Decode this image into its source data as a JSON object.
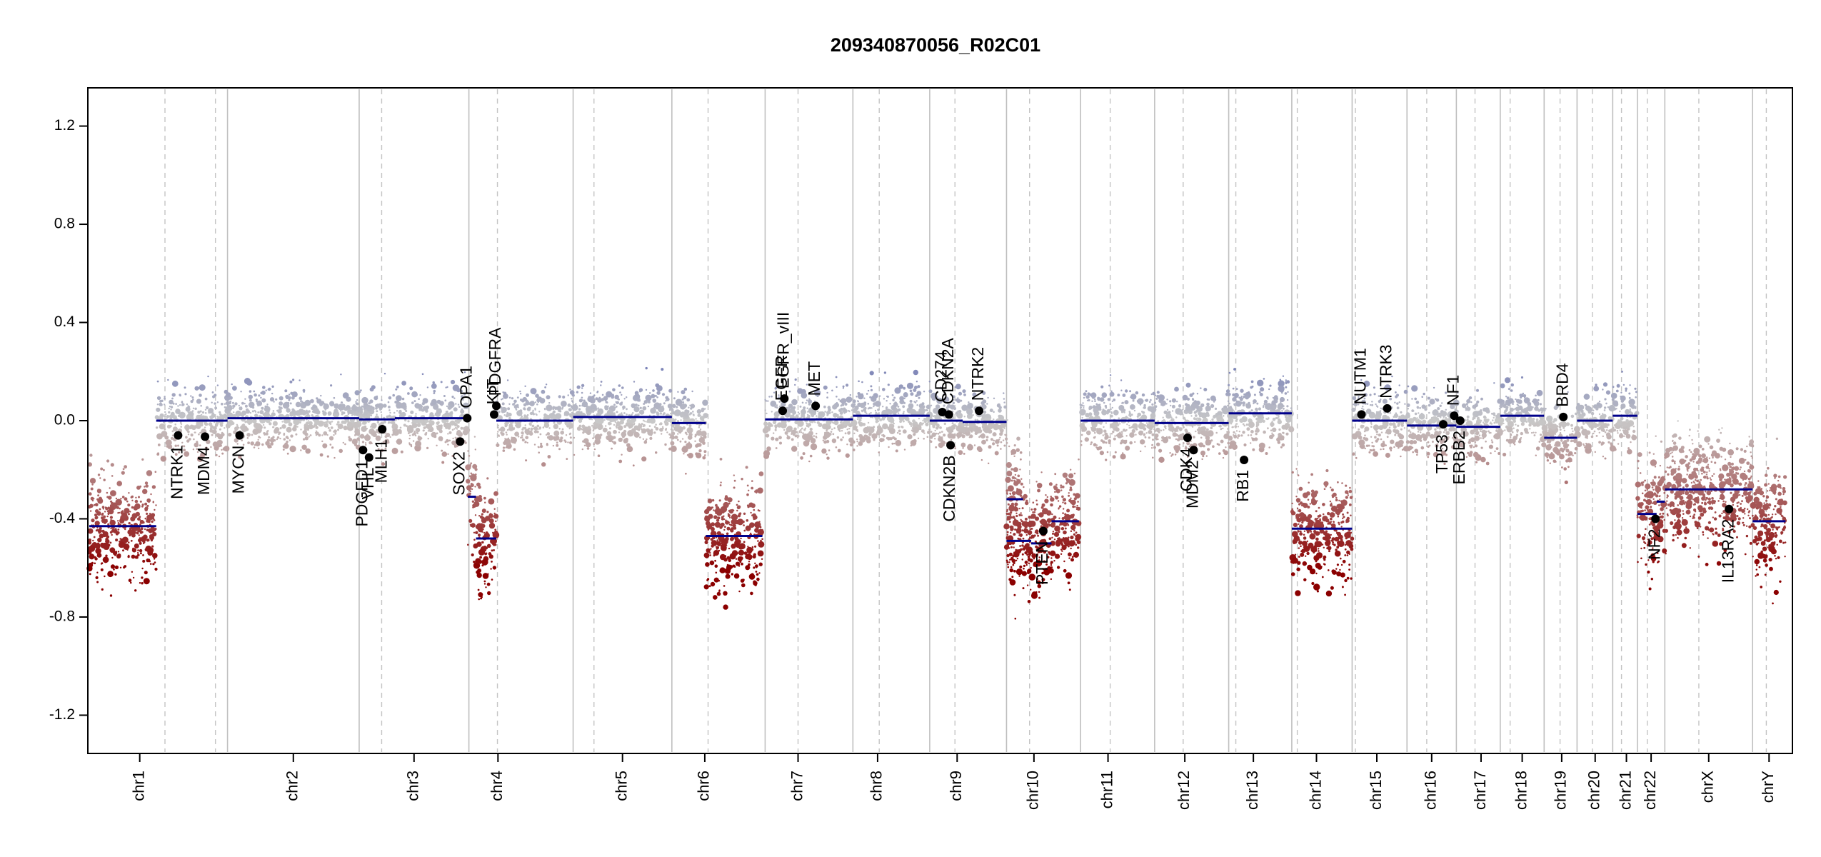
{
  "chart_data": {
    "type": "scatter",
    "title": "209340870056_R02C01",
    "xlabel": "",
    "ylabel": "",
    "ylim": [
      -1.35,
      1.35
    ],
    "yticks": [
      1.2,
      0.8,
      0.4,
      0.0,
      -0.4,
      -0.8,
      -1.2
    ],
    "grid": false,
    "legend": "none",
    "colors": {
      "gain": "#6f78b5",
      "neutral": "#c8c8c8",
      "loss": "#8b0000",
      "segment": "#00008b",
      "point": "#000000"
    },
    "chromosomes": [
      {
        "name": "chr1",
        "start": 0,
        "end": 240,
        "center": 80
      },
      {
        "name": "chr2",
        "start": 240,
        "end": 480,
        "center": 360
      },
      {
        "name": "chr3",
        "start": 480,
        "end": 680,
        "center": 580
      },
      {
        "name": "chr4",
        "start": 680,
        "end": 870,
        "center": 733
      },
      {
        "name": "chr5",
        "start": 870,
        "end": 1050,
        "center": 960
      },
      {
        "name": "chr6",
        "start": 1050,
        "end": 1220,
        "center": 1110
      },
      {
        "name": "chr7",
        "start": 1220,
        "end": 1380,
        "center": 1280
      },
      {
        "name": "chr8",
        "start": 1380,
        "end": 1520,
        "center": 1425
      },
      {
        "name": "chr9",
        "start": 1520,
        "end": 1660,
        "center": 1570
      },
      {
        "name": "chr10",
        "start": 1660,
        "end": 1795,
        "center": 1710
      },
      {
        "name": "chr11",
        "start": 1795,
        "end": 1930,
        "center": 1845
      },
      {
        "name": "chr12",
        "start": 1930,
        "end": 2065,
        "center": 1985
      },
      {
        "name": "chr13",
        "start": 2065,
        "end": 2180,
        "center": 2110
      },
      {
        "name": "chr14",
        "start": 2180,
        "end": 2290,
        "center": 2225
      },
      {
        "name": "chr15",
        "start": 2290,
        "end": 2390,
        "center": 2335
      },
      {
        "name": "chr16",
        "start": 2390,
        "end": 2480,
        "center": 2435
      },
      {
        "name": "chr17",
        "start": 2480,
        "end": 2560,
        "center": 2525
      },
      {
        "name": "chr18",
        "start": 2560,
        "end": 2640,
        "center": 2600
      },
      {
        "name": "chr19",
        "start": 2640,
        "end": 2700,
        "center": 2672
      },
      {
        "name": "chr20",
        "start": 2700,
        "end": 2765,
        "center": 2733
      },
      {
        "name": "chr21",
        "start": 2765,
        "end": 2810,
        "center": 2790
      },
      {
        "name": "chr22",
        "start": 2810,
        "end": 2860,
        "center": 2835
      },
      {
        "name": "chrX",
        "start": 2860,
        "end": 3020,
        "center": 2940
      },
      {
        "name": "chrY",
        "start": 3020,
        "end": 3080,
        "center": 3050
      }
    ],
    "centromeres": [
      126,
      218,
      521,
      732,
      908,
      1116,
      1280,
      1428,
      1566,
      1702,
      1849,
      1982,
      2078,
      2190,
      2296,
      2426,
      2514,
      2578,
      2669,
      2728,
      2781,
      2828,
      2922,
      3045
    ],
    "segments": [
      {
        "start": -12,
        "end": 110,
        "value": -0.43
      },
      {
        "start": 110,
        "end": 240,
        "value": 0.0
      },
      {
        "start": 240,
        "end": 480,
        "value": 0.01
      },
      {
        "start": 480,
        "end": 545,
        "value": 0.005
      },
      {
        "start": 545,
        "end": 678,
        "value": 0.01
      },
      {
        "start": 678,
        "end": 693,
        "value": -0.31
      },
      {
        "start": 693,
        "end": 730,
        "value": -0.48
      },
      {
        "start": 730,
        "end": 870,
        "value": 0.0
      },
      {
        "start": 870,
        "end": 1050,
        "value": 0.015
      },
      {
        "start": 1050,
        "end": 1112,
        "value": -0.01
      },
      {
        "start": 1112,
        "end": 1215,
        "value": -0.47
      },
      {
        "start": 1220,
        "end": 1380,
        "value": 0.005
      },
      {
        "start": 1380,
        "end": 1520,
        "value": 0.02
      },
      {
        "start": 1520,
        "end": 1580,
        "value": 0.0
      },
      {
        "start": 1580,
        "end": 1660,
        "value": -0.005
      },
      {
        "start": 1660,
        "end": 1690,
        "value": -0.32
      },
      {
        "start": 1660,
        "end": 1705,
        "value": -0.49
      },
      {
        "start": 1705,
        "end": 1742,
        "value": -0.5
      },
      {
        "start": 1742,
        "end": 1792,
        "value": -0.41
      },
      {
        "start": 1795,
        "end": 1930,
        "value": 0.0
      },
      {
        "start": 1930,
        "end": 2065,
        "value": -0.01
      },
      {
        "start": 2065,
        "end": 2180,
        "value": 0.03
      },
      {
        "start": 2180,
        "end": 2290,
        "value": -0.44
      },
      {
        "start": 2290,
        "end": 2390,
        "value": 0.0
      },
      {
        "start": 2390,
        "end": 2480,
        "value": -0.02
      },
      {
        "start": 2480,
        "end": 2560,
        "value": -0.025
      },
      {
        "start": 2560,
        "end": 2640,
        "value": 0.02
      },
      {
        "start": 2640,
        "end": 2700,
        "value": -0.07
      },
      {
        "start": 2700,
        "end": 2765,
        "value": 0.0
      },
      {
        "start": 2765,
        "end": 2810,
        "value": 0.02
      },
      {
        "start": 2810,
        "end": 2845,
        "value": -0.38
      },
      {
        "start": 2845,
        "end": 2860,
        "value": -0.33
      },
      {
        "start": 2860,
        "end": 3020,
        "value": -0.28
      },
      {
        "start": 3020,
        "end": 3080,
        "value": -0.41
      }
    ],
    "genes": [
      {
        "name": "NTRK1",
        "x": 150,
        "value": -0.06,
        "label_dir": "down"
      },
      {
        "name": "MDM4",
        "x": 199,
        "value": -0.065,
        "label_dir": "down"
      },
      {
        "name": "MYCN",
        "x": 262,
        "value": -0.06,
        "label_dir": "down"
      },
      {
        "name": "PDGFD1",
        "x": 487,
        "value": -0.12,
        "label_dir": "down"
      },
      {
        "name": "VHL",
        "x": 498,
        "value": -0.15,
        "label_dir": "down"
      },
      {
        "name": "MLH1",
        "x": 522,
        "value": -0.035,
        "label_dir": "down"
      },
      {
        "name": "SOX2",
        "x": 664,
        "value": -0.085,
        "label_dir": "down"
      },
      {
        "name": "OPA1",
        "x": 677,
        "value": 0.01,
        "label_dir": "up"
      },
      {
        "name": "KIT",
        "x": 726,
        "value": 0.025,
        "label_dir": "up"
      },
      {
        "name": "PDGFRA",
        "x": 730,
        "value": 0.06,
        "label_dir": "up"
      },
      {
        "name": "EGFR",
        "x": 1252,
        "value": 0.04,
        "label_dir": "up"
      },
      {
        "name": "EGFR_vIII",
        "x": 1255,
        "value": 0.09,
        "label_dir": "up"
      },
      {
        "name": "MET",
        "x": 1312,
        "value": 0.06,
        "label_dir": "up"
      },
      {
        "name": "CD274",
        "x": 1543,
        "value": 0.035,
        "label_dir": "up"
      },
      {
        "name": "CDKN2A",
        "x": 1555,
        "value": 0.025,
        "label_dir": "up"
      },
      {
        "name": "CDKN2B",
        "x": 1558,
        "value": -0.1,
        "label_dir": "down"
      },
      {
        "name": "NTRK2",
        "x": 1610,
        "value": 0.04,
        "label_dir": "up"
      },
      {
        "name": "PTEN",
        "x": 1727,
        "value": -0.45,
        "label_dir": "down"
      },
      {
        "name": "CDK4",
        "x": 1990,
        "value": -0.07,
        "label_dir": "down"
      },
      {
        "name": "MDM2",
        "x": 2001,
        "value": -0.12,
        "label_dir": "down"
      },
      {
        "name": "RB1",
        "x": 2093,
        "value": -0.16,
        "label_dir": "down"
      },
      {
        "name": "NUTM1",
        "x": 2307,
        "value": 0.025,
        "label_dir": "up"
      },
      {
        "name": "NTRK3",
        "x": 2354,
        "value": 0.05,
        "label_dir": "up"
      },
      {
        "name": "TP53",
        "x": 2456,
        "value": -0.015,
        "label_dir": "down"
      },
      {
        "name": "NF1",
        "x": 2476,
        "value": 0.02,
        "label_dir": "up"
      },
      {
        "name": "ERBB2",
        "x": 2487,
        "value": 0.0,
        "label_dir": "down"
      },
      {
        "name": "BRD4",
        "x": 2675,
        "value": 0.015,
        "label_dir": "up"
      },
      {
        "name": "NF2",
        "x": 2843,
        "value": -0.4,
        "label_dir": "down"
      },
      {
        "name": "IL13RA2",
        "x": 2977,
        "value": -0.36,
        "label_dir": "down"
      }
    ]
  }
}
